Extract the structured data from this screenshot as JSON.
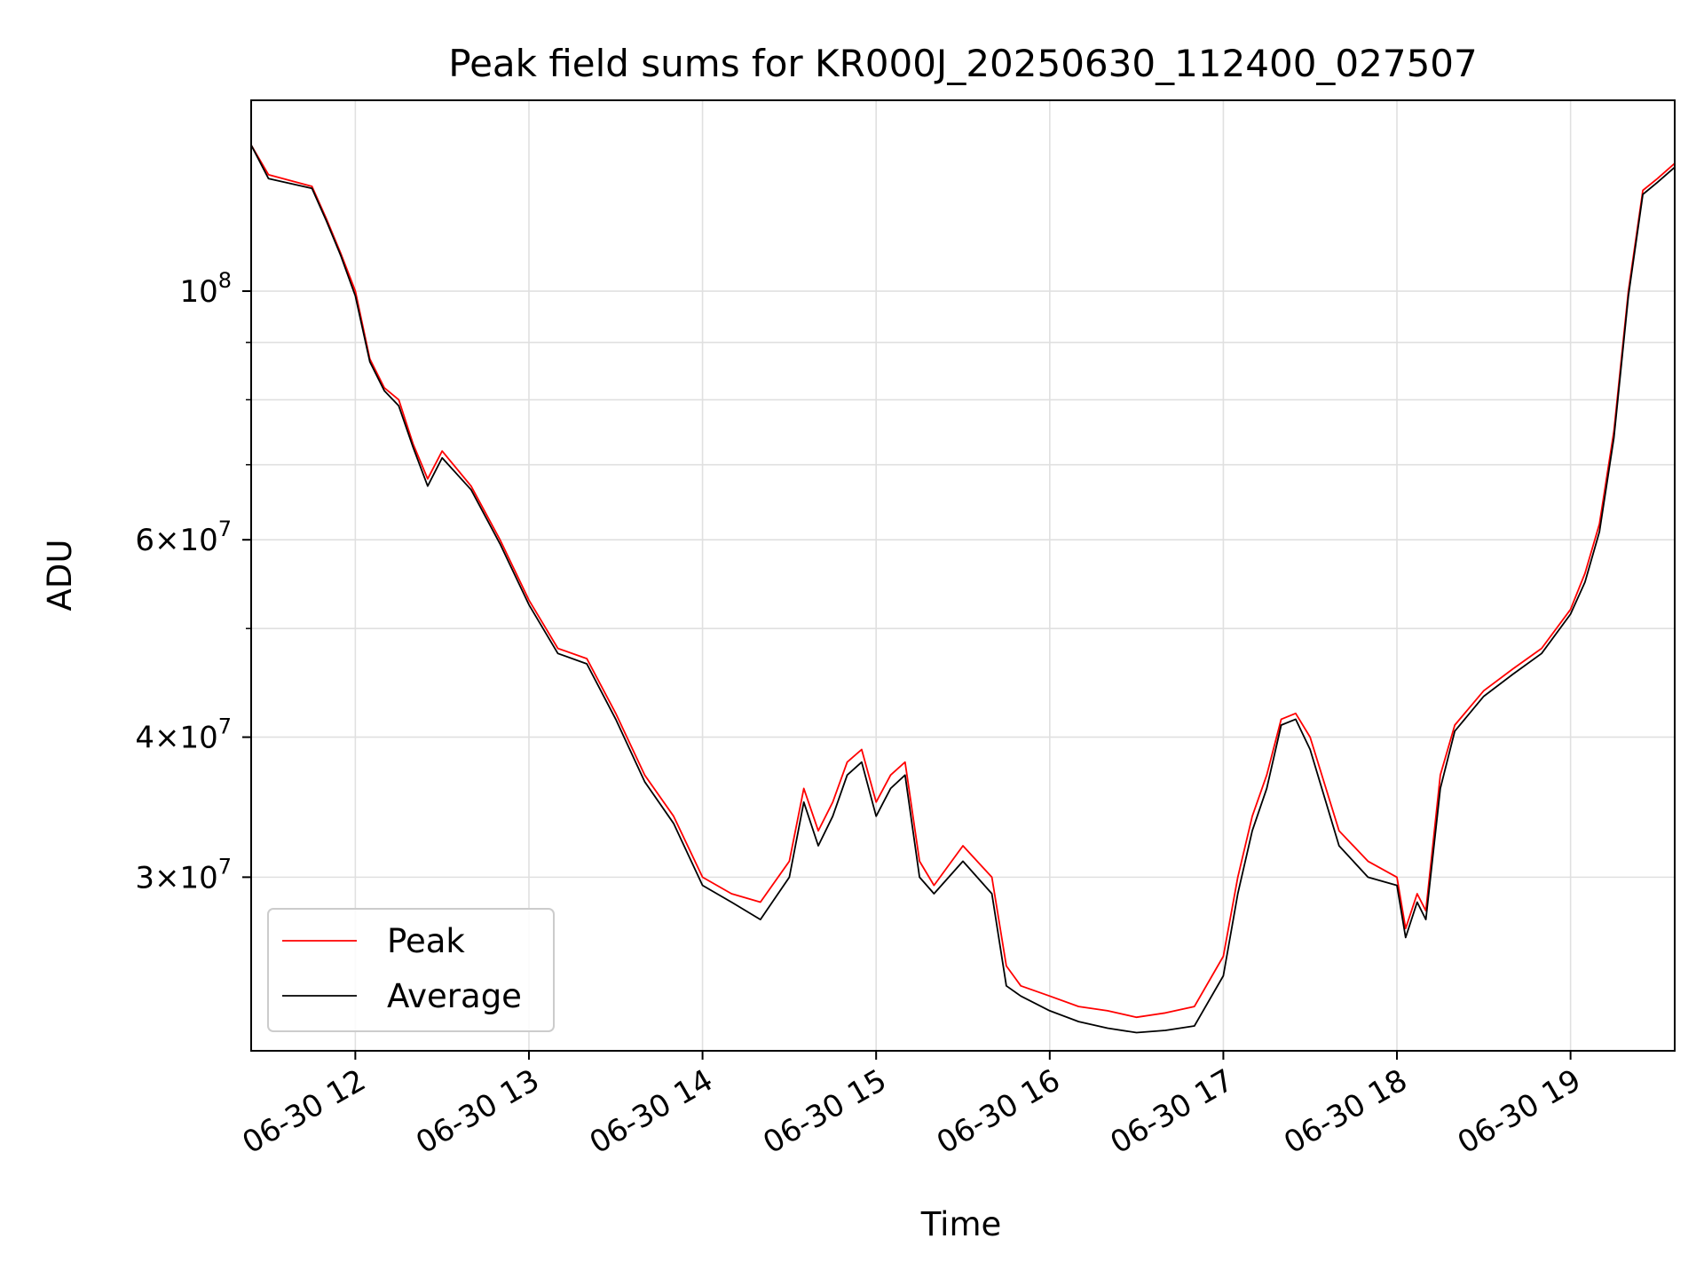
{
  "chart_data": {
    "type": "line",
    "title": "Peak field sums for KR000J_20250630_112400_027507",
    "xlabel": "Time",
    "ylabel": "ADU",
    "yscale": "log",
    "xlim": [
      "2025-06-30 11:24",
      "2025-06-30 19:36"
    ],
    "ylim": [
      21000000,
      148000000
    ],
    "grid": true,
    "legend": "lower-left",
    "x_ticks": [
      "06-30 12",
      "06-30 13",
      "06-30 14",
      "06-30 15",
      "06-30 16",
      "06-30 17",
      "06-30 18",
      "06-30 19"
    ],
    "y_major_ticks": [
      {
        "value": 100000000,
        "label": "10^8"
      },
      {
        "value": 60000000,
        "label": "6×10^7"
      },
      {
        "value": 40000000,
        "label": "4×10^7"
      },
      {
        "value": 30000000,
        "label": "3×10^7"
      }
    ],
    "y_minor_ticks": [
      50000000,
      70000000,
      80000000,
      90000000
    ],
    "x": [
      "2025-06-30 11:24",
      "2025-06-30 11:30",
      "2025-06-30 11:45",
      "2025-06-30 11:50",
      "2025-06-30 11:55",
      "2025-06-30 12:00",
      "2025-06-30 12:05",
      "2025-06-30 12:10",
      "2025-06-30 12:15",
      "2025-06-30 12:20",
      "2025-06-30 12:25",
      "2025-06-30 12:30",
      "2025-06-30 12:40",
      "2025-06-30 12:50",
      "2025-06-30 13:00",
      "2025-06-30 13:10",
      "2025-06-30 13:20",
      "2025-06-30 13:30",
      "2025-06-30 13:40",
      "2025-06-30 13:50",
      "2025-06-30 14:00",
      "2025-06-30 14:10",
      "2025-06-30 14:20",
      "2025-06-30 14:30",
      "2025-06-30 14:35",
      "2025-06-30 14:40",
      "2025-06-30 14:45",
      "2025-06-30 14:50",
      "2025-06-30 14:55",
      "2025-06-30 15:00",
      "2025-06-30 15:05",
      "2025-06-30 15:10",
      "2025-06-30 15:15",
      "2025-06-30 15:20",
      "2025-06-30 15:30",
      "2025-06-30 15:40",
      "2025-06-30 15:45",
      "2025-06-30 15:50",
      "2025-06-30 16:00",
      "2025-06-30 16:10",
      "2025-06-30 16:20",
      "2025-06-30 16:30",
      "2025-06-30 16:40",
      "2025-06-30 16:50",
      "2025-06-30 17:00",
      "2025-06-30 17:05",
      "2025-06-30 17:10",
      "2025-06-30 17:15",
      "2025-06-30 17:20",
      "2025-06-30 17:25",
      "2025-06-30 17:30",
      "2025-06-30 17:40",
      "2025-06-30 17:50",
      "2025-06-30 18:00",
      "2025-06-30 18:03",
      "2025-06-30 18:07",
      "2025-06-30 18:10",
      "2025-06-30 18:15",
      "2025-06-30 18:20",
      "2025-06-30 18:30",
      "2025-06-30 18:40",
      "2025-06-30 18:50",
      "2025-06-30 19:00",
      "2025-06-30 19:05",
      "2025-06-30 19:10",
      "2025-06-30 19:15",
      "2025-06-30 19:20",
      "2025-06-30 19:25",
      "2025-06-30 19:30",
      "2025-06-30 19:36"
    ],
    "series": [
      {
        "name": "Peak",
        "color": "#ff0000",
        "values": [
          135000000,
          127000000,
          124000000,
          116000000,
          108000000,
          100000000,
          87000000,
          82000000,
          80000000,
          73000000,
          68000000,
          72000000,
          67000000,
          60000000,
          53000000,
          48000000,
          47000000,
          42000000,
          37000000,
          34000000,
          30000000,
          29000000,
          28500000,
          31000000,
          36000000,
          33000000,
          35000000,
          38000000,
          39000000,
          35000000,
          37000000,
          38000000,
          31000000,
          29500000,
          32000000,
          30000000,
          25000000,
          24000000,
          23500000,
          23000000,
          22800000,
          22500000,
          22700000,
          23000000,
          25500000,
          30000000,
          34000000,
          37000000,
          41500000,
          42000000,
          40000000,
          33000000,
          31000000,
          30000000,
          27000000,
          29000000,
          28000000,
          37000000,
          41000000,
          44000000,
          46000000,
          48000000,
          52000000,
          56000000,
          62000000,
          75000000,
          100000000,
          123000000,
          126000000,
          130000000
        ]
      },
      {
        "name": "Average",
        "color": "#000000",
        "values": [
          135000000,
          126000000,
          123500000,
          115500000,
          107500000,
          99000000,
          86500000,
          81500000,
          79000000,
          72500000,
          67000000,
          71000000,
          66500000,
          59500000,
          52500000,
          47500000,
          46500000,
          41500000,
          36500000,
          33500000,
          29500000,
          28500000,
          27500000,
          30000000,
          35000000,
          32000000,
          34000000,
          37000000,
          38000000,
          34000000,
          36000000,
          37000000,
          30000000,
          29000000,
          31000000,
          29000000,
          24000000,
          23500000,
          22800000,
          22300000,
          22000000,
          21800000,
          21900000,
          22100000,
          24500000,
          29000000,
          33000000,
          36000000,
          41000000,
          41500000,
          39000000,
          32000000,
          30000000,
          29500000,
          26500000,
          28500000,
          27500000,
          36000000,
          40500000,
          43500000,
          45500000,
          47500000,
          51500000,
          55000000,
          61000000,
          74000000,
          99000000,
          122000000,
          125000000,
          129000000
        ]
      }
    ]
  }
}
